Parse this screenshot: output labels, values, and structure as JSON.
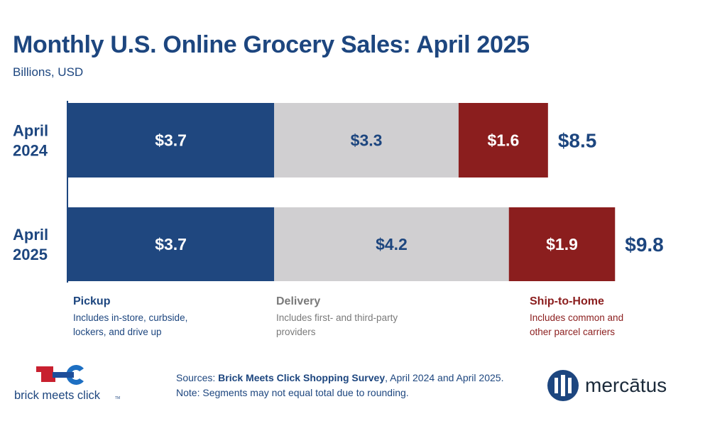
{
  "title": "Monthly U.S. Online Grocery Sales: April 2025",
  "subtitle": "Billions, USD",
  "colors": {
    "pickup": "#1f477f",
    "delivery": "#d0cfd1",
    "ship": "#8b1e1e",
    "navy": "#1d467f",
    "gray_text": "#808080"
  },
  "chart_data": {
    "type": "bar",
    "orientation": "horizontal-stacked",
    "categories": [
      "April\n2024",
      "April\n2025"
    ],
    "series": [
      {
        "name": "Pickup",
        "values": [
          3.7,
          3.7
        ],
        "labels": [
          "$3.7",
          "$3.7"
        ]
      },
      {
        "name": "Delivery",
        "values": [
          3.3,
          4.2
        ],
        "labels": [
          "$3.3",
          "$4.2"
        ]
      },
      {
        "name": "Ship-to-Home",
        "values": [
          1.6,
          1.9
        ],
        "labels": [
          "$1.6",
          "$1.9"
        ]
      }
    ],
    "totals": [
      8.5,
      9.8
    ],
    "total_labels": [
      "$8.5",
      "$9.8"
    ]
  },
  "legend": [
    {
      "name": "Pickup",
      "desc": "Includes in-store, curbside, lockers, and drive up"
    },
    {
      "name": "Delivery",
      "desc": "Includes first- and third-party providers"
    },
    {
      "name": "Ship-to-Home",
      "desc": "Includes common and other parcel carriers"
    }
  ],
  "sources": {
    "prefix": "Sources: ",
    "survey": "Brick Meets Click Shopping Survey",
    "suffix": ", April 2024 and April 2025.",
    "note": "Note: Segments may not equal total due to rounding."
  },
  "logos": {
    "bmc": "brick meets click",
    "bmc_tm": "TM",
    "mercatus": "mercātus"
  }
}
